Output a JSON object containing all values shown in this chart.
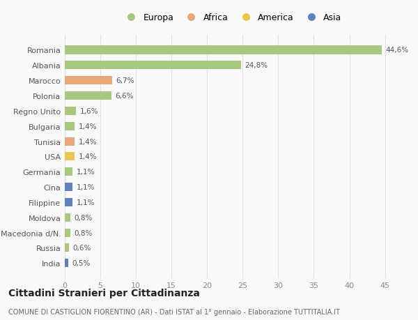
{
  "categories": [
    "Romania",
    "Albania",
    "Marocco",
    "Polonia",
    "Regno Unito",
    "Bulgaria",
    "Tunisia",
    "USA",
    "Germania",
    "Cina",
    "Filippine",
    "Moldova",
    "Macedonia d/N.",
    "Russia",
    "India"
  ],
  "values": [
    44.6,
    24.8,
    6.7,
    6.6,
    1.6,
    1.4,
    1.4,
    1.4,
    1.1,
    1.1,
    1.1,
    0.8,
    0.8,
    0.6,
    0.5
  ],
  "labels": [
    "44,6%",
    "24,8%",
    "6,7%",
    "6,6%",
    "1,6%",
    "1,4%",
    "1,4%",
    "1,4%",
    "1,1%",
    "1,1%",
    "1,1%",
    "0,8%",
    "0,8%",
    "0,6%",
    "0,5%"
  ],
  "colors": [
    "#a8c880",
    "#a8c880",
    "#e8a878",
    "#a8c880",
    "#a8c880",
    "#a8c880",
    "#e8a878",
    "#e8c850",
    "#a8c880",
    "#6080c0",
    "#6080c0",
    "#a8c880",
    "#a8c880",
    "#a8c880",
    "#6080c0"
  ],
  "legend_labels": [
    "Europa",
    "Africa",
    "America",
    "Asia"
  ],
  "legend_colors": [
    "#a8c880",
    "#e8a878",
    "#e8c850",
    "#6080c0"
  ],
  "xlim": [
    0,
    47
  ],
  "xticks": [
    0,
    5,
    10,
    15,
    20,
    25,
    30,
    35,
    40,
    45
  ],
  "title": "Cittadini Stranieri per Cittadinanza",
  "subtitle": "COMUNE DI CASTIGLION FIORENTINO (AR) - Dati ISTAT al 1° gennaio - Elaborazione TUTTITALIA.IT",
  "background_color": "#f9f9f9",
  "grid_color": "#e0e0e0",
  "bar_height": 0.55
}
